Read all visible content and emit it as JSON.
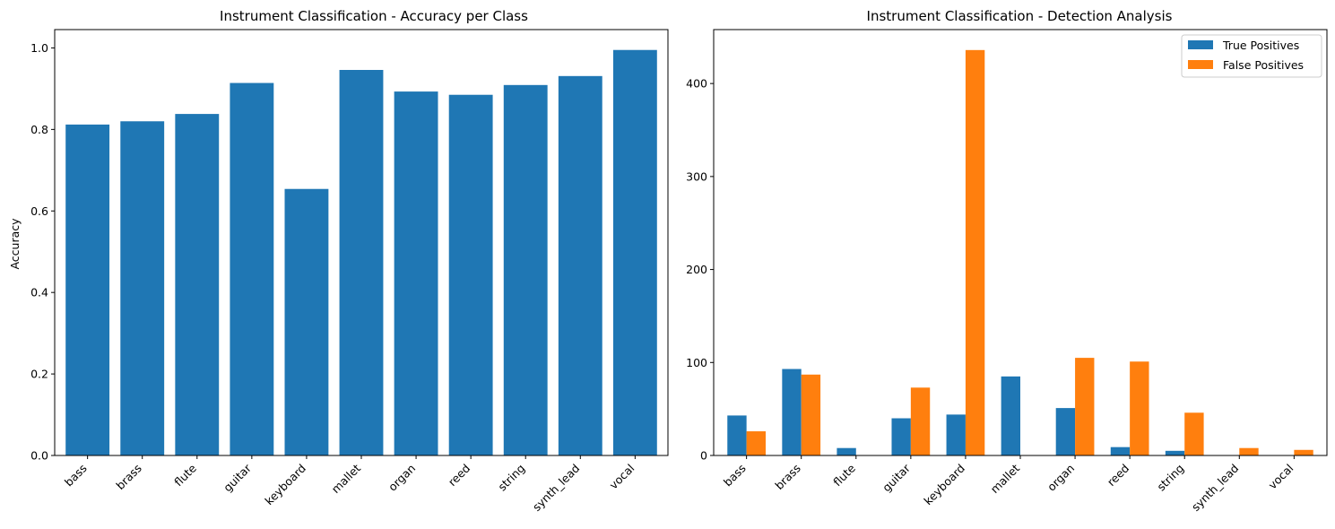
{
  "chart_data": [
    {
      "type": "bar",
      "title": "Instrument Classification - Accuracy per Class",
      "xlabel": "",
      "ylabel": "Accuracy",
      "categories": [
        "bass",
        "brass",
        "flute",
        "guitar",
        "keyboard",
        "mallet",
        "organ",
        "reed",
        "string",
        "synth_lead",
        "vocal"
      ],
      "values": [
        0.812,
        0.82,
        0.838,
        0.914,
        0.654,
        0.946,
        0.893,
        0.885,
        0.909,
        0.931,
        0.995
      ],
      "ylim": [
        0,
        1.045
      ],
      "yticks": [
        0.0,
        0.2,
        0.4,
        0.6,
        0.8,
        1.0
      ],
      "ytick_labels": [
        "0.0",
        "0.2",
        "0.4",
        "0.6",
        "0.8",
        "1.0"
      ],
      "color": "#1f77b4",
      "grid": false
    },
    {
      "type": "bar",
      "title": "Instrument Classification - Detection Analysis",
      "xlabel": "",
      "ylabel": "",
      "categories": [
        "bass",
        "brass",
        "flute",
        "guitar",
        "keyboard",
        "mallet",
        "organ",
        "reed",
        "string",
        "synth_lead",
        "vocal"
      ],
      "series": [
        {
          "name": "True Positives",
          "color": "#1f77b4",
          "values": [
            43,
            93,
            8,
            40,
            44,
            85,
            51,
            9,
            5,
            0,
            0
          ]
        },
        {
          "name": "False Positives",
          "color": "#ff7f0e",
          "values": [
            26,
            87,
            0,
            73,
            436,
            0,
            105,
            101,
            46,
            8,
            6
          ]
        }
      ],
      "ylim": [
        0,
        458
      ],
      "yticks": [
        0,
        100,
        200,
        300,
        400
      ],
      "ytick_labels": [
        "0",
        "100",
        "200",
        "300",
        "400"
      ],
      "legend": "top-right",
      "grid": false
    }
  ]
}
